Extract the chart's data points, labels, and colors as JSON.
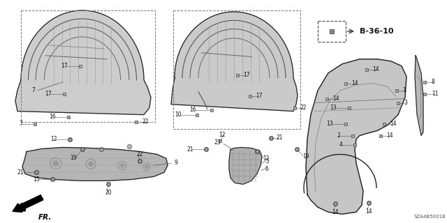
{
  "background_color": "#ffffff",
  "diagram_code": "SZA4B5001B",
  "part_label": "B-36-10",
  "fr_label": "FR.",
  "figsize": [
    6.4,
    3.2
  ],
  "dpi": 100,
  "text_color": "#111111",
  "line_color": "#222222",
  "part_fill": "#d0d0d0",
  "part_fill2": "#b8b8b8",
  "label_fontsize": 5.5,
  "bold_fontsize": 8.5,
  "code_fontsize": 5.0
}
